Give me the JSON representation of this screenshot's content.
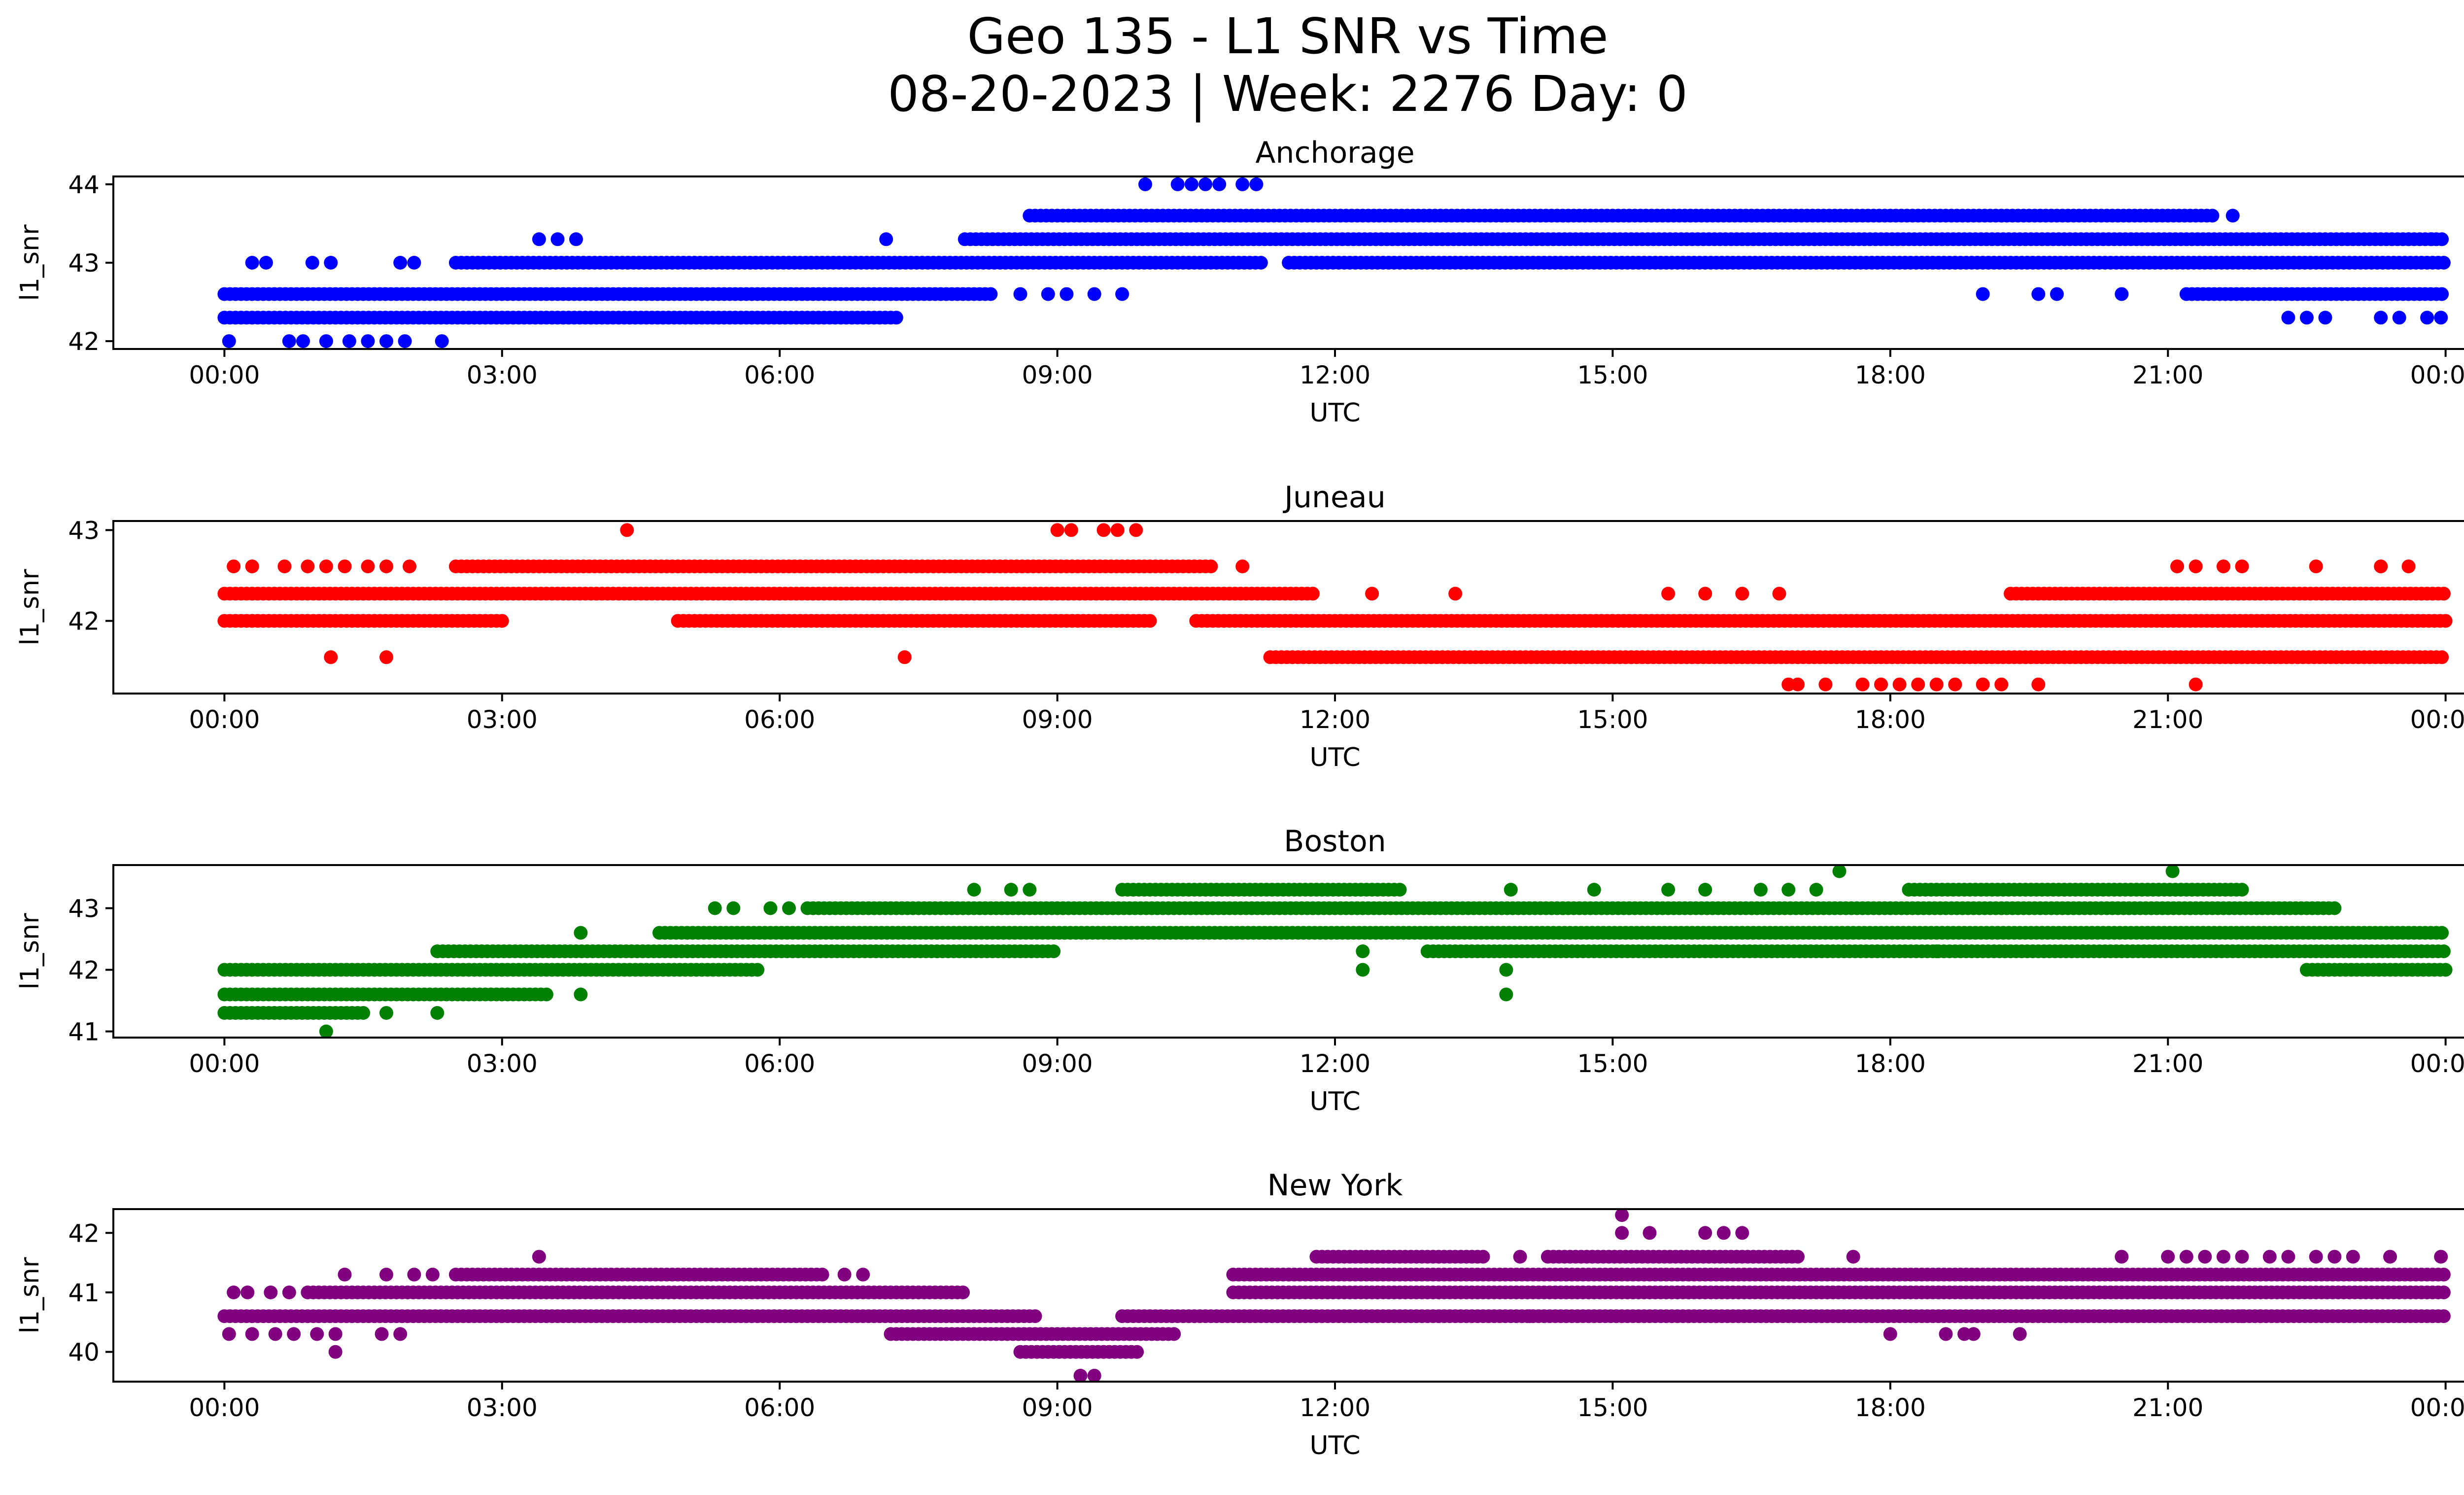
{
  "figure": {
    "title_line1": "Geo 135 - L1 SNR vs Time",
    "title_line2": "08-20-2023 | Week: 2276 Day: 0"
  },
  "chart_data": [
    {
      "type": "scatter",
      "title": "Anchorage",
      "color": "#0000ff",
      "xlabel": "UTC",
      "ylabel": "l1_snr",
      "x_tick_labels": [
        "00:00",
        "03:00",
        "06:00",
        "09:00",
        "12:00",
        "15:00",
        "18:00",
        "21:00",
        "00:00"
      ],
      "x_ticks_hours": [
        0,
        3,
        6,
        9,
        12,
        15,
        18,
        21,
        24
      ],
      "xlim_hours": [
        -1.2,
        25.2
      ],
      "ylim": [
        41.9,
        44.1
      ],
      "y_ticks": [
        42,
        43,
        44
      ],
      "y_tick_labels": [
        "42",
        "43",
        "44"
      ],
      "levels": [
        {
          "y": 42.3,
          "spans": [
            [
              0,
              7.3
            ]
          ]
        },
        {
          "y": 42.6,
          "spans": [
            [
              0,
              8.3
            ],
            [
              21.2,
              24
            ]
          ]
        },
        {
          "y": 43.0,
          "spans": [
            [
              2.5,
              11.2
            ],
            [
              11.5,
              24
            ]
          ]
        },
        {
          "y": 43.3,
          "spans": [
            [
              8.0,
              24
            ]
          ]
        },
        {
          "y": 43.6,
          "spans": [
            [
              8.7,
              21.5
            ]
          ]
        }
      ],
      "isolated": [
        {
          "x": 0.05,
          "y": 42.0
        },
        {
          "x": 0.7,
          "y": 42.0
        },
        {
          "x": 0.85,
          "y": 42.0
        },
        {
          "x": 1.1,
          "y": 42.0
        },
        {
          "x": 1.35,
          "y": 42.0
        },
        {
          "x": 1.55,
          "y": 42.0
        },
        {
          "x": 1.75,
          "y": 42.0
        },
        {
          "x": 1.95,
          "y": 42.0
        },
        {
          "x": 2.35,
          "y": 42.0
        },
        {
          "x": 0.3,
          "y": 43.0
        },
        {
          "x": 0.45,
          "y": 43.0
        },
        {
          "x": 0.95,
          "y": 43.0
        },
        {
          "x": 1.15,
          "y": 43.0
        },
        {
          "x": 1.9,
          "y": 43.0
        },
        {
          "x": 2.05,
          "y": 43.0
        },
        {
          "x": 3.4,
          "y": 43.3
        },
        {
          "x": 3.6,
          "y": 43.3
        },
        {
          "x": 3.8,
          "y": 43.3
        },
        {
          "x": 7.15,
          "y": 43.3
        },
        {
          "x": 8.6,
          "y": 42.6
        },
        {
          "x": 8.9,
          "y": 42.6
        },
        {
          "x": 9.1,
          "y": 42.6
        },
        {
          "x": 9.4,
          "y": 42.6
        },
        {
          "x": 9.7,
          "y": 42.6
        },
        {
          "x": 19.0,
          "y": 42.6
        },
        {
          "x": 19.6,
          "y": 42.6
        },
        {
          "x": 19.8,
          "y": 42.6
        },
        {
          "x": 20.5,
          "y": 42.6
        },
        {
          "x": 21.7,
          "y": 43.6
        },
        {
          "x": 22.3,
          "y": 42.3
        },
        {
          "x": 22.5,
          "y": 42.3
        },
        {
          "x": 22.7,
          "y": 42.3
        },
        {
          "x": 23.3,
          "y": 42.3
        },
        {
          "x": 23.5,
          "y": 42.3
        },
        {
          "x": 23.8,
          "y": 42.3
        },
        {
          "x": 23.95,
          "y": 42.3
        },
        {
          "x": 23.6,
          "y": 43.3
        },
        {
          "x": 23.85,
          "y": 43.3
        },
        {
          "x": 9.95,
          "y": 44.0
        },
        {
          "x": 10.3,
          "y": 44.0
        },
        {
          "x": 10.45,
          "y": 44.0
        },
        {
          "x": 10.6,
          "y": 44.0
        },
        {
          "x": 10.75,
          "y": 44.0
        },
        {
          "x": 11.0,
          "y": 44.0
        },
        {
          "x": 11.15,
          "y": 44.0
        }
      ]
    },
    {
      "type": "scatter",
      "title": "Juneau",
      "color": "#ff0000",
      "xlabel": "UTC",
      "ylabel": "l1_snr",
      "x_tick_labels": [
        "00:00",
        "03:00",
        "06:00",
        "09:00",
        "12:00",
        "15:00",
        "18:00",
        "21:00",
        "00:00"
      ],
      "x_ticks_hours": [
        0,
        3,
        6,
        9,
        12,
        15,
        18,
        21,
        24
      ],
      "xlim_hours": [
        -1.2,
        25.2
      ],
      "ylim": [
        41.2,
        43.1
      ],
      "y_ticks": [
        42,
        43
      ],
      "y_tick_labels": [
        "42",
        "43"
      ],
      "levels": [
        {
          "y": 41.6,
          "spans": [
            [
              11.3,
              24
            ]
          ]
        },
        {
          "y": 42.0,
          "spans": [
            [
              0,
              3.0
            ],
            [
              4.9,
              10.0
            ],
            [
              10.5,
              24
            ]
          ]
        },
        {
          "y": 42.3,
          "spans": [
            [
              0,
              11.8
            ],
            [
              19.3,
              24
            ]
          ]
        },
        {
          "y": 42.6,
          "spans": [
            [
              2.5,
              10.7
            ]
          ]
        }
      ],
      "isolated": [
        {
          "x": 0.1,
          "y": 42.6
        },
        {
          "x": 0.3,
          "y": 42.6
        },
        {
          "x": 0.65,
          "y": 42.6
        },
        {
          "x": 0.9,
          "y": 42.6
        },
        {
          "x": 1.1,
          "y": 42.6
        },
        {
          "x": 1.3,
          "y": 42.6
        },
        {
          "x": 1.55,
          "y": 42.6
        },
        {
          "x": 1.75,
          "y": 42.6
        },
        {
          "x": 2.0,
          "y": 42.6
        },
        {
          "x": 1.15,
          "y": 41.6
        },
        {
          "x": 1.75,
          "y": 41.6
        },
        {
          "x": 7.35,
          "y": 41.6
        },
        {
          "x": 4.35,
          "y": 43.0
        },
        {
          "x": 9.0,
          "y": 43.0
        },
        {
          "x": 9.15,
          "y": 43.0
        },
        {
          "x": 9.5,
          "y": 43.0
        },
        {
          "x": 9.65,
          "y": 43.0
        },
        {
          "x": 9.85,
          "y": 43.0
        },
        {
          "x": 11.0,
          "y": 42.6
        },
        {
          "x": 21.1,
          "y": 42.6
        },
        {
          "x": 21.3,
          "y": 42.6
        },
        {
          "x": 21.6,
          "y": 42.6
        },
        {
          "x": 21.8,
          "y": 42.6
        },
        {
          "x": 22.6,
          "y": 42.6
        },
        {
          "x": 23.3,
          "y": 42.6
        },
        {
          "x": 23.6,
          "y": 42.6
        },
        {
          "x": 12.4,
          "y": 42.3
        },
        {
          "x": 13.3,
          "y": 42.3
        },
        {
          "x": 15.6,
          "y": 42.3
        },
        {
          "x": 16.0,
          "y": 42.3
        },
        {
          "x": 16.4,
          "y": 42.3
        },
        {
          "x": 16.8,
          "y": 42.3
        },
        {
          "x": 16.9,
          "y": 41.3
        },
        {
          "x": 17.0,
          "y": 41.3
        },
        {
          "x": 17.3,
          "y": 41.3
        },
        {
          "x": 17.7,
          "y": 41.3
        },
        {
          "x": 17.9,
          "y": 41.3
        },
        {
          "x": 18.1,
          "y": 41.3
        },
        {
          "x": 18.3,
          "y": 41.3
        },
        {
          "x": 18.5,
          "y": 41.3
        },
        {
          "x": 18.7,
          "y": 41.3
        },
        {
          "x": 19.0,
          "y": 41.3
        },
        {
          "x": 19.2,
          "y": 41.3
        },
        {
          "x": 19.6,
          "y": 41.3
        },
        {
          "x": 21.3,
          "y": 41.3
        }
      ]
    },
    {
      "type": "scatter",
      "title": "Boston",
      "color": "#008000",
      "xlabel": "UTC",
      "ylabel": "l1_snr",
      "x_tick_labels": [
        "00:00",
        "03:00",
        "06:00",
        "09:00",
        "12:00",
        "15:00",
        "18:00",
        "21:00",
        "00:00"
      ],
      "x_ticks_hours": [
        0,
        3,
        6,
        9,
        12,
        15,
        18,
        21,
        24
      ],
      "xlim_hours": [
        -1.2,
        25.2
      ],
      "ylim": [
        40.9,
        43.7
      ],
      "y_ticks": [
        41,
        42,
        43
      ],
      "y_tick_labels": [
        "41",
        "42",
        "43"
      ],
      "levels": [
        {
          "y": 41.3,
          "spans": [
            [
              0,
              1.5
            ]
          ]
        },
        {
          "y": 41.6,
          "spans": [
            [
              0,
              3.5
            ]
          ]
        },
        {
          "y": 42.0,
          "spans": [
            [
              0,
              5.8
            ],
            [
              22.5,
              24
            ]
          ]
        },
        {
          "y": 42.3,
          "spans": [
            [
              2.3,
              9.0
            ],
            [
              13.0,
              24
            ]
          ]
        },
        {
          "y": 42.6,
          "spans": [
            [
              4.7,
              24
            ]
          ]
        },
        {
          "y": 43.0,
          "spans": [
            [
              6.3,
              22.8
            ]
          ]
        },
        {
          "y": 43.3,
          "spans": [
            [
              9.7,
              12.7
            ],
            [
              18.2,
              21.8
            ]
          ]
        }
      ],
      "isolated": [
        {
          "x": 1.1,
          "y": 41.0
        },
        {
          "x": 1.75,
          "y": 41.3
        },
        {
          "x": 2.3,
          "y": 41.3
        },
        {
          "x": 3.85,
          "y": 41.6
        },
        {
          "x": 3.85,
          "y": 42.6
        },
        {
          "x": 5.3,
          "y": 43.0
        },
        {
          "x": 5.5,
          "y": 43.0
        },
        {
          "x": 5.9,
          "y": 43.0
        },
        {
          "x": 6.1,
          "y": 43.0
        },
        {
          "x": 8.1,
          "y": 43.3
        },
        {
          "x": 8.5,
          "y": 43.3
        },
        {
          "x": 8.7,
          "y": 43.3
        },
        {
          "x": 12.3,
          "y": 42.3
        },
        {
          "x": 12.3,
          "y": 42.0
        },
        {
          "x": 13.85,
          "y": 42.0
        },
        {
          "x": 13.85,
          "y": 41.6
        },
        {
          "x": 13.9,
          "y": 43.3
        },
        {
          "x": 14.8,
          "y": 43.3
        },
        {
          "x": 15.6,
          "y": 43.3
        },
        {
          "x": 16.0,
          "y": 43.3
        },
        {
          "x": 16.6,
          "y": 43.3
        },
        {
          "x": 16.9,
          "y": 43.3
        },
        {
          "x": 17.2,
          "y": 43.3
        },
        {
          "x": 17.45,
          "y": 43.6
        },
        {
          "x": 18.5,
          "y": 42.3
        },
        {
          "x": 21.05,
          "y": 43.6
        }
      ]
    },
    {
      "type": "scatter",
      "title": "New York",
      "color": "#800080",
      "xlabel": "UTC",
      "ylabel": "l1_snr",
      "x_tick_labels": [
        "00:00",
        "03:00",
        "06:00",
        "09:00",
        "12:00",
        "15:00",
        "18:00",
        "21:00",
        "00:00"
      ],
      "x_ticks_hours": [
        0,
        3,
        6,
        9,
        12,
        15,
        18,
        21,
        24
      ],
      "xlim_hours": [
        -1.2,
        25.2
      ],
      "ylim": [
        39.5,
        42.4
      ],
      "y_ticks": [
        40,
        41,
        42
      ],
      "y_tick_labels": [
        "40",
        "41",
        "42"
      ],
      "levels": [
        {
          "y": 40.0,
          "spans": [
            [
              8.6,
              9.9
            ]
          ]
        },
        {
          "y": 40.3,
          "spans": [
            [
              7.2,
              10.3
            ]
          ]
        },
        {
          "y": 40.6,
          "spans": [
            [
              0,
              8.8
            ],
            [
              9.7,
              24
            ]
          ]
        },
        {
          "y": 41.0,
          "spans": [
            [
              0.9,
              8.0
            ],
            [
              10.9,
              24
            ]
          ]
        },
        {
          "y": 41.3,
          "spans": [
            [
              2.5,
              6.5
            ],
            [
              10.9,
              24
            ]
          ]
        },
        {
          "y": 41.6,
          "spans": [
            [
              11.8,
              13.6
            ],
            [
              14.3,
              17.0
            ]
          ]
        }
      ],
      "isolated": [
        {
          "x": 0.1,
          "y": 41.0
        },
        {
          "x": 0.25,
          "y": 41.0
        },
        {
          "x": 0.5,
          "y": 41.0
        },
        {
          "x": 0.7,
          "y": 41.0
        },
        {
          "x": 0.05,
          "y": 40.3
        },
        {
          "x": 0.3,
          "y": 40.3
        },
        {
          "x": 0.55,
          "y": 40.3
        },
        {
          "x": 0.75,
          "y": 40.3
        },
        {
          "x": 1.0,
          "y": 40.3
        },
        {
          "x": 1.2,
          "y": 40.3
        },
        {
          "x": 1.7,
          "y": 40.3
        },
        {
          "x": 1.9,
          "y": 40.3
        },
        {
          "x": 1.2,
          "y": 40.0
        },
        {
          "x": 1.3,
          "y": 41.3
        },
        {
          "x": 1.75,
          "y": 41.3
        },
        {
          "x": 2.05,
          "y": 41.3
        },
        {
          "x": 2.25,
          "y": 41.3
        },
        {
          "x": 3.4,
          "y": 41.6
        },
        {
          "x": 6.7,
          "y": 41.3
        },
        {
          "x": 6.9,
          "y": 41.3
        },
        {
          "x": 9.25,
          "y": 39.6
        },
        {
          "x": 9.4,
          "y": 39.6
        },
        {
          "x": 11.5,
          "y": 41.3
        },
        {
          "x": 14.1,
          "y": 40.6
        },
        {
          "x": 14.0,
          "y": 41.6
        },
        {
          "x": 15.1,
          "y": 42.3
        },
        {
          "x": 15.1,
          "y": 42.0
        },
        {
          "x": 15.4,
          "y": 42.0
        },
        {
          "x": 16.0,
          "y": 42.0
        },
        {
          "x": 16.2,
          "y": 42.0
        },
        {
          "x": 16.4,
          "y": 42.0
        },
        {
          "x": 17.6,
          "y": 41.6
        },
        {
          "x": 18.0,
          "y": 40.3
        },
        {
          "x": 18.6,
          "y": 40.3
        },
        {
          "x": 18.8,
          "y": 40.3
        },
        {
          "x": 18.9,
          "y": 40.3
        },
        {
          "x": 19.4,
          "y": 40.3
        },
        {
          "x": 20.5,
          "y": 41.6
        },
        {
          "x": 21.0,
          "y": 41.6
        },
        {
          "x": 21.2,
          "y": 41.6
        },
        {
          "x": 21.4,
          "y": 41.6
        },
        {
          "x": 21.6,
          "y": 41.6
        },
        {
          "x": 21.8,
          "y": 41.6
        },
        {
          "x": 22.1,
          "y": 41.6
        },
        {
          "x": 22.3,
          "y": 41.6
        },
        {
          "x": 22.6,
          "y": 41.6
        },
        {
          "x": 22.8,
          "y": 41.6
        },
        {
          "x": 23.0,
          "y": 41.6
        },
        {
          "x": 23.4,
          "y": 41.6
        },
        {
          "x": 23.95,
          "y": 41.6
        },
        {
          "x": 21.8,
          "y": 40.6
        },
        {
          "x": 22.0,
          "y": 40.6
        }
      ]
    }
  ]
}
